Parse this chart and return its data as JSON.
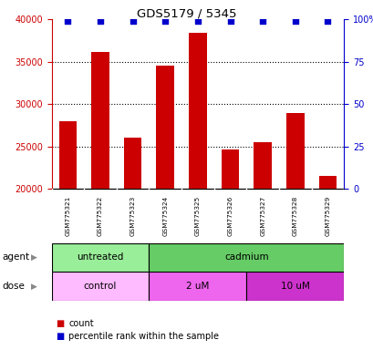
{
  "title": "GDS5179 / 5345",
  "samples": [
    "GSM775321",
    "GSM775322",
    "GSM775323",
    "GSM775324",
    "GSM775325",
    "GSM775326",
    "GSM775327",
    "GSM775328",
    "GSM775329"
  ],
  "counts": [
    28000,
    36200,
    26100,
    34500,
    38400,
    24700,
    25500,
    29000,
    21500
  ],
  "percentile_ranks": [
    99,
    99,
    99,
    99,
    99,
    99,
    99,
    99,
    99
  ],
  "ylim_left": [
    20000,
    40000
  ],
  "ylim_right": [
    0,
    100
  ],
  "yticks_left": [
    20000,
    25000,
    30000,
    35000,
    40000
  ],
  "yticks_right": [
    0,
    25,
    50,
    75,
    100
  ],
  "bar_color": "#cc0000",
  "dot_color": "#0000cc",
  "bar_width": 0.55,
  "agent_labels": [
    {
      "label": "untreated",
      "start": 0,
      "end": 3,
      "color": "#99ee99"
    },
    {
      "label": "cadmium",
      "start": 3,
      "end": 9,
      "color": "#66cc66"
    }
  ],
  "dose_labels": [
    {
      "label": "control",
      "start": 0,
      "end": 3,
      "color": "#ffbbff"
    },
    {
      "label": "2 uM",
      "start": 3,
      "end": 6,
      "color": "#ee66ee"
    },
    {
      "label": "10 uM",
      "start": 6,
      "end": 9,
      "color": "#cc33cc"
    }
  ],
  "row_label_agent": "agent",
  "row_label_dose": "dose",
  "legend_count_label": "count",
  "legend_percentile_label": "percentile rank within the sample",
  "background_color": "#ffffff",
  "tick_label_color_left": "#cc0000",
  "tick_label_color_right": "#0000cc",
  "grid_dotted_at": [
    25000,
    30000,
    35000
  ],
  "label_area_color": "#cccccc"
}
